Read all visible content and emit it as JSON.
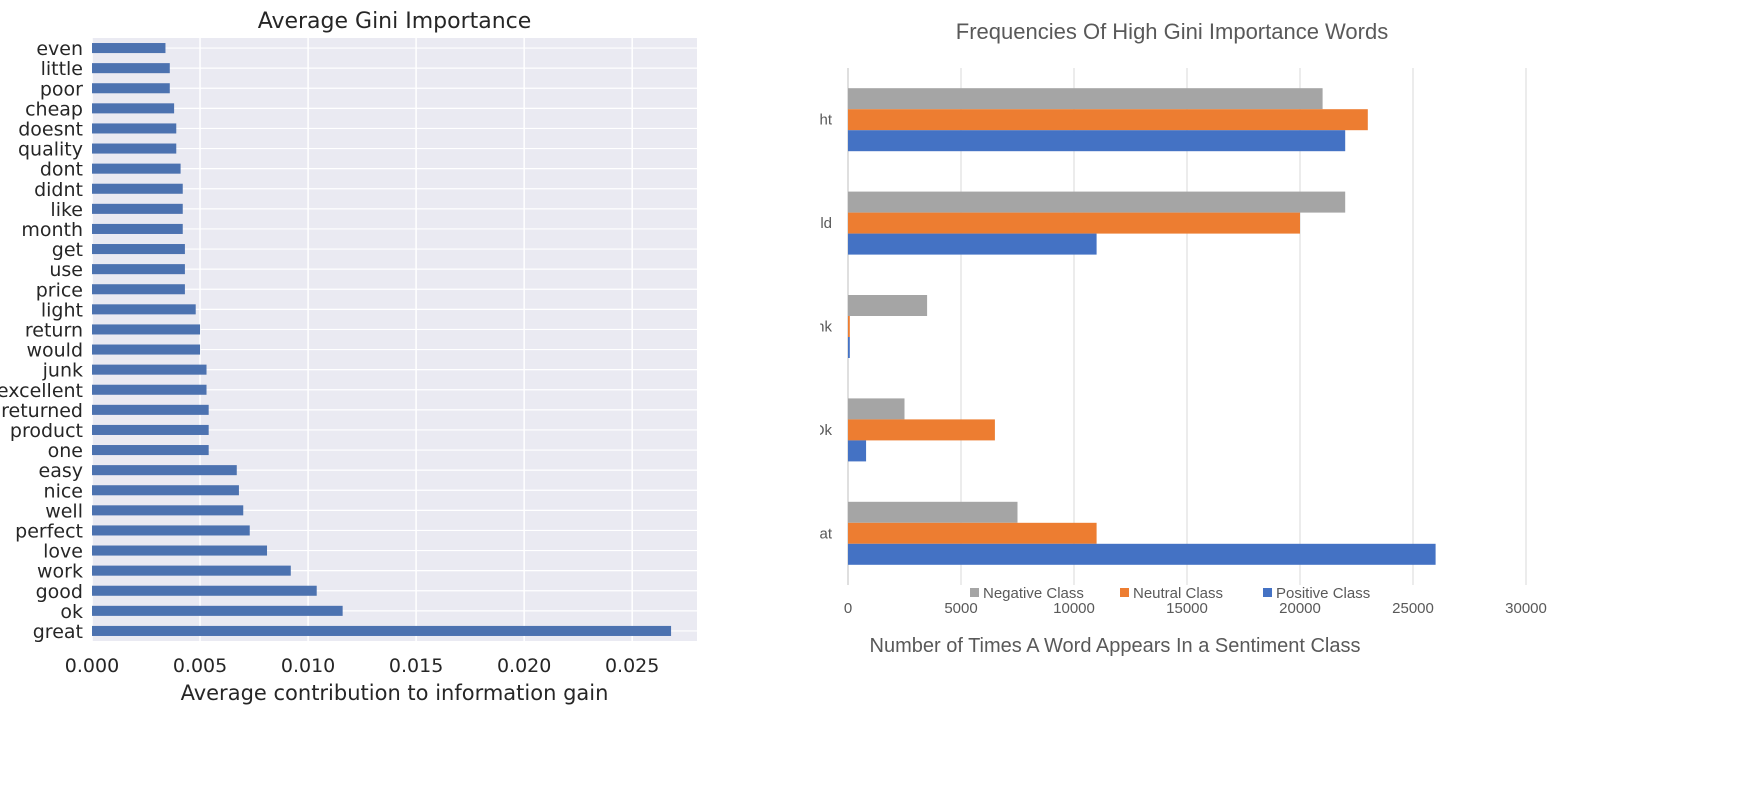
{
  "left_chart": {
    "chart_data": {
      "type": "bar",
      "orientation": "horizontal",
      "title": "Average Gini Importance",
      "xlabel": "Average contribution to information gain",
      "ylabel": "",
      "xlim": [
        0,
        0.028
      ],
      "xticks": [
        "0.000",
        "0.005",
        "0.010",
        "0.015",
        "0.020",
        "0.025"
      ],
      "grid": true,
      "bar_color": "#4c72b0",
      "background_color": "#eaeaf2",
      "categories": [
        "even",
        "little",
        "poor",
        "cheap",
        "doesnt",
        "quality",
        "dont",
        "didnt",
        "like",
        "month",
        "get",
        "use",
        "price",
        "light",
        "return",
        "would",
        "junk",
        "excellent",
        "returned",
        "product",
        "one",
        "easy",
        "nice",
        "well",
        "perfect",
        "love",
        "work",
        "good",
        "ok",
        "great"
      ],
      "values": [
        0.0034,
        0.0036,
        0.0036,
        0.0038,
        0.0039,
        0.0039,
        0.0041,
        0.0042,
        0.0042,
        0.0042,
        0.0043,
        0.0043,
        0.0043,
        0.0048,
        0.005,
        0.005,
        0.0053,
        0.0053,
        0.0054,
        0.0054,
        0.0054,
        0.0067,
        0.0068,
        0.007,
        0.0073,
        0.0081,
        0.0092,
        0.0104,
        0.0116,
        0.0268
      ]
    }
  },
  "right_chart": {
    "chart_data": {
      "type": "bar",
      "orientation": "horizontal",
      "title": "Frequencies Of High Gini Importance Words",
      "xlabel": "Number of Times A Word Appears In a Sentiment Class",
      "ylabel": "",
      "xlim": [
        0,
        30000
      ],
      "xticks": [
        "0",
        "5000",
        "10000",
        "15000",
        "20000",
        "25000",
        "30000"
      ],
      "grid": true,
      "legend_position": "bottom",
      "categories": [
        "Light",
        "Would",
        "Junk",
        "Ok",
        "Great"
      ],
      "series": [
        {
          "name": "Negative Class",
          "color": "#a5a5a5",
          "values": [
            21000,
            22000,
            3500,
            2500,
            7500
          ]
        },
        {
          "name": "Neutral Class",
          "color": "#ed7d31",
          "values": [
            23000,
            20000,
            80,
            6500,
            11000
          ]
        },
        {
          "name": "Positive Class",
          "color": "#4472c4",
          "values": [
            22000,
            11000,
            80,
            800,
            26000
          ]
        }
      ]
    }
  }
}
